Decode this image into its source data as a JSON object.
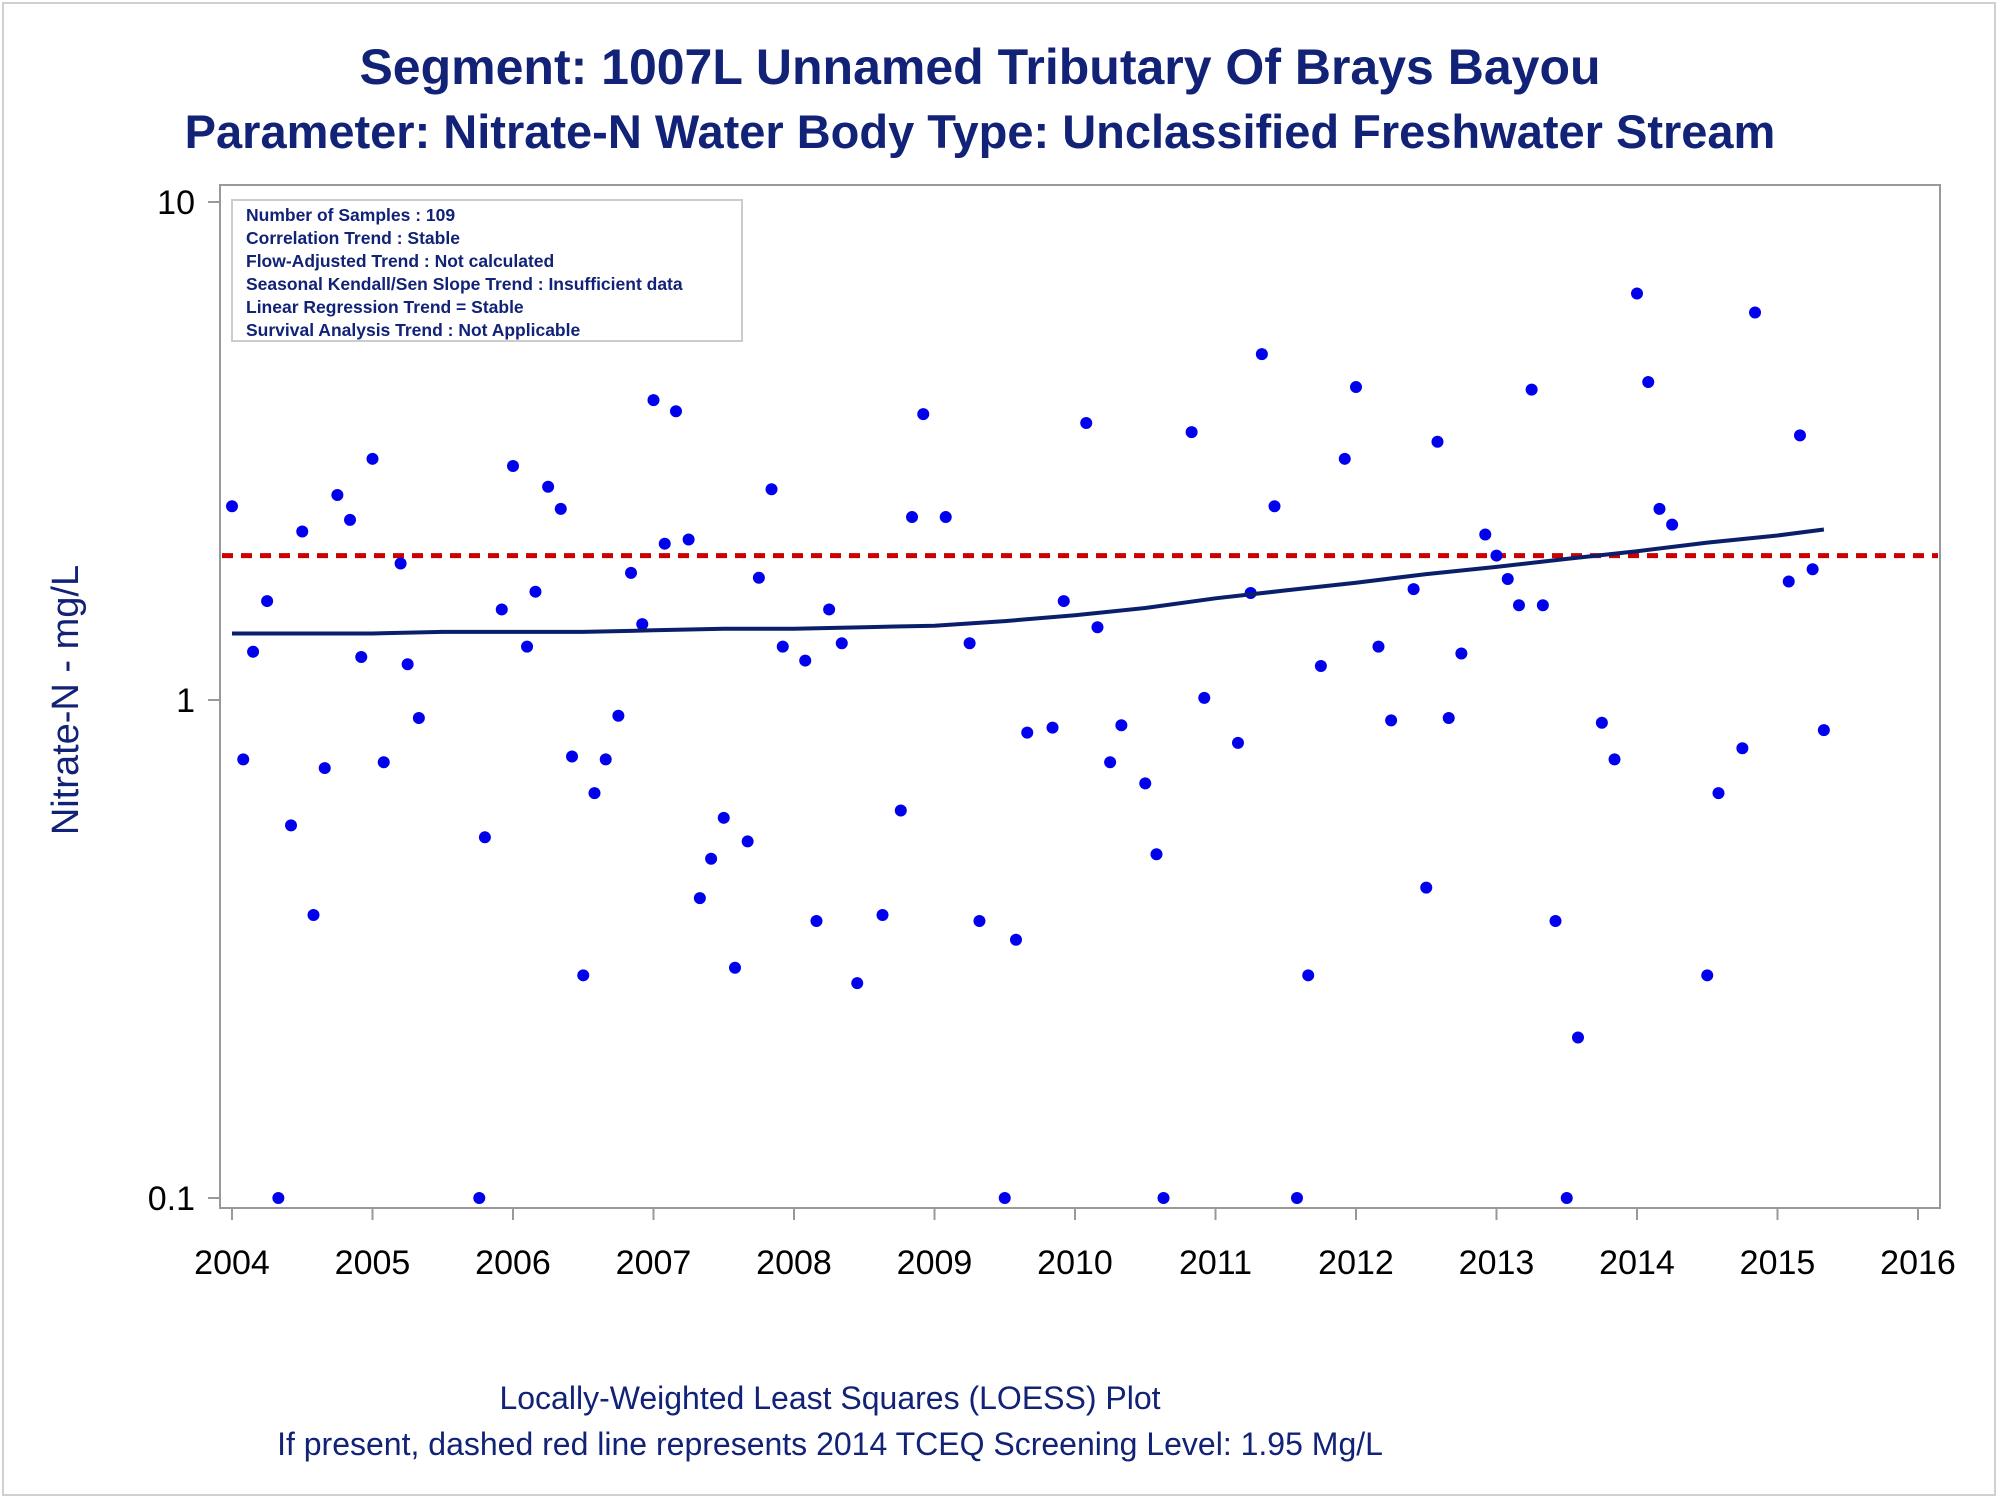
{
  "title_line1": "Segment: 1007L  Unnamed Tributary Of Brays Bayou",
  "title_line2": "Parameter: Nitrate-N   Water Body Type: Unclassified Freshwater Stream",
  "footnote_line1": "Locally-Weighted Least Squares (LOESS) Plot",
  "footnote_line2": "If present, dashed red line represents 2014 TCEQ Screening Level: 1.95 Mg/L",
  "stats_box": [
    "Number of Samples : 109",
    "Correlation Trend : Stable",
    "Flow-Adjusted Trend : Not calculated",
    "Seasonal Kendall/Sen Slope Trend : Insufficient data",
    "Linear Regression Trend = Stable",
    "Survival Analysis Trend : Not Applicable"
  ],
  "colors": {
    "title": "#112277",
    "points": "#0000ee",
    "loess_line": "#0a1f6b",
    "screening_line": "#cc0000",
    "frame": "#999999"
  },
  "chart_data": {
    "type": "scatter",
    "ylabel": "Nitrate-N - mg/L",
    "xlabel": "",
    "y_scale": "log",
    "ylim": [
      0.1,
      10
    ],
    "xlim": [
      2004,
      2016
    ],
    "x_ticks": [
      "2004",
      "2005",
      "2006",
      "2007",
      "2008",
      "2009",
      "2010",
      "2011",
      "2012",
      "2013",
      "2014",
      "2015",
      "2016"
    ],
    "y_ticks": [
      "0.1",
      "1",
      "10"
    ],
    "grid": false,
    "screening_level": 1.95,
    "points": [
      [
        2004.0,
        2.45
      ],
      [
        2004.08,
        0.76
      ],
      [
        2004.15,
        1.25
      ],
      [
        2004.25,
        1.58
      ],
      [
        2004.33,
        0.1
      ],
      [
        2004.42,
        0.56
      ],
      [
        2004.5,
        2.18
      ],
      [
        2004.58,
        0.37
      ],
      [
        2004.66,
        0.73
      ],
      [
        2004.75,
        2.58
      ],
      [
        2004.84,
        2.3
      ],
      [
        2004.92,
        1.22
      ],
      [
        2005.0,
        3.05
      ],
      [
        2005.08,
        0.75
      ],
      [
        2005.2,
        1.88
      ],
      [
        2005.25,
        1.18
      ],
      [
        2005.33,
        0.92
      ],
      [
        2005.76,
        0.1
      ],
      [
        2005.8,
        0.53
      ],
      [
        2005.92,
        1.52
      ],
      [
        2006.0,
        2.95
      ],
      [
        2006.1,
        1.28
      ],
      [
        2006.16,
        1.65
      ],
      [
        2006.25,
        2.68
      ],
      [
        2006.34,
        2.42
      ],
      [
        2006.42,
        0.77
      ],
      [
        2006.5,
        0.28
      ],
      [
        2006.58,
        0.65
      ],
      [
        2006.66,
        0.76
      ],
      [
        2006.75,
        0.93
      ],
      [
        2006.84,
        1.8
      ],
      [
        2006.92,
        1.42
      ],
      [
        2007.0,
        4.0
      ],
      [
        2007.08,
        2.06
      ],
      [
        2007.16,
        3.8
      ],
      [
        2007.25,
        2.1
      ],
      [
        2007.33,
        0.4
      ],
      [
        2007.41,
        0.48
      ],
      [
        2007.5,
        0.58
      ],
      [
        2007.58,
        0.29
      ],
      [
        2007.67,
        0.52
      ],
      [
        2007.75,
        1.76
      ],
      [
        2007.84,
        2.65
      ],
      [
        2007.92,
        1.28
      ],
      [
        2008.08,
        1.2
      ],
      [
        2008.16,
        0.36
      ],
      [
        2008.25,
        1.52
      ],
      [
        2008.34,
        1.3
      ],
      [
        2008.45,
        0.27
      ],
      [
        2008.63,
        0.37
      ],
      [
        2008.76,
        0.6
      ],
      [
        2008.84,
        2.33
      ],
      [
        2008.92,
        3.75
      ],
      [
        2009.08,
        2.33
      ],
      [
        2009.25,
        1.3
      ],
      [
        2009.32,
        0.36
      ],
      [
        2009.5,
        0.1
      ],
      [
        2009.58,
        0.33
      ],
      [
        2009.66,
        0.86
      ],
      [
        2009.84,
        0.88
      ],
      [
        2009.92,
        1.58
      ],
      [
        2010.08,
        3.6
      ],
      [
        2010.16,
        1.4
      ],
      [
        2010.25,
        0.75
      ],
      [
        2010.33,
        0.89
      ],
      [
        2010.5,
        0.68
      ],
      [
        2010.58,
        0.49
      ],
      [
        2010.63,
        0.1
      ],
      [
        2010.83,
        3.45
      ],
      [
        2010.92,
        1.01
      ],
      [
        2011.16,
        0.82
      ],
      [
        2011.25,
        1.64
      ],
      [
        2011.33,
        4.95
      ],
      [
        2011.42,
        2.45
      ],
      [
        2011.58,
        0.1
      ],
      [
        2011.66,
        0.28
      ],
      [
        2011.75,
        1.17
      ],
      [
        2011.92,
        3.05
      ],
      [
        2012.0,
        4.25
      ],
      [
        2012.16,
        1.28
      ],
      [
        2012.25,
        0.91
      ],
      [
        2012.41,
        1.67
      ],
      [
        2012.5,
        0.42
      ],
      [
        2012.58,
        3.3
      ],
      [
        2012.66,
        0.92
      ],
      [
        2012.75,
        1.24
      ],
      [
        2012.92,
        2.15
      ],
      [
        2013.0,
        1.95
      ],
      [
        2013.08,
        1.75
      ],
      [
        2013.16,
        1.55
      ],
      [
        2013.25,
        4.2
      ],
      [
        2013.33,
        1.55
      ],
      [
        2013.42,
        0.36
      ],
      [
        2013.5,
        0.1
      ],
      [
        2013.58,
        0.21
      ],
      [
        2013.75,
        0.9
      ],
      [
        2013.84,
        0.76
      ],
      [
        2014.0,
        6.55
      ],
      [
        2014.08,
        4.35
      ],
      [
        2014.16,
        2.42
      ],
      [
        2014.25,
        2.25
      ],
      [
        2014.5,
        0.28
      ],
      [
        2014.58,
        0.65
      ],
      [
        2014.75,
        0.8
      ],
      [
        2014.84,
        6.0
      ],
      [
        2015.08,
        1.73
      ],
      [
        2015.16,
        3.4
      ],
      [
        2015.25,
        1.83
      ],
      [
        2015.33,
        0.87
      ]
    ],
    "loess_series": {
      "x": [
        2004.0,
        2004.5,
        2005.0,
        2005.5,
        2006.0,
        2006.5,
        2007.0,
        2007.5,
        2008.0,
        2008.5,
        2009.0,
        2009.5,
        2010.0,
        2010.5,
        2011.0,
        2011.5,
        2012.0,
        2012.5,
        2013.0,
        2013.5,
        2014.0,
        2014.5,
        2015.0,
        2015.33
      ],
      "y": [
        1.36,
        1.36,
        1.36,
        1.37,
        1.37,
        1.37,
        1.38,
        1.39,
        1.39,
        1.4,
        1.41,
        1.44,
        1.48,
        1.53,
        1.6,
        1.66,
        1.72,
        1.79,
        1.85,
        1.92,
        1.99,
        2.07,
        2.14,
        2.2
      ]
    }
  }
}
